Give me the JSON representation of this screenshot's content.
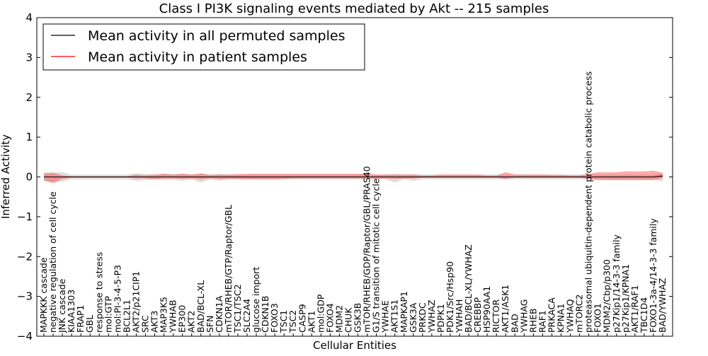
{
  "chart_data": {
    "type": "line",
    "title": "Class I PI3K signaling events mediated by Akt -- 215 samples",
    "xlabel": "Cellular Entities",
    "ylabel": "Inferred Activity",
    "ylim": [
      -4,
      4
    ],
    "yticks": [
      4,
      3,
      2,
      1,
      0,
      -1,
      -2,
      -3,
      -4
    ],
    "grid": false,
    "legend_position": "top-left",
    "legend": [
      {
        "label": "Mean activity in all permuted samples",
        "color": "#000000"
      },
      {
        "label": "Mean activity in patient samples",
        "color": "#ff0000"
      }
    ],
    "categories": [
      "MAPKKK cascade",
      "negative regulation of cell cycle",
      "JNK cascade",
      "KIAA1303",
      "FRAP1",
      "GBL",
      "response to stress",
      "mol:GTP",
      "mol:PI-3-4-5-P3",
      "BCL2L1",
      "AKT2/p21CIP1",
      "SRC",
      "AKT3",
      "MAP3K5",
      "YWHAB",
      "EP300",
      "AKT2",
      "BAD/BCL-XL",
      "SFN",
      "CDKN1A",
      "mTOR/RHEB/GTP/Raptor/GBL",
      "TSC1/TSC2",
      "SLC2A4",
      "glucose import",
      "CDKN1B",
      "FOXO3",
      "TSC1",
      "TSC2",
      "CASP9",
      "AKT1",
      "mol:GDP",
      "FOXO4",
      "MDM2",
      "CHUK",
      "GSK3B",
      "mTOR/RHEB/GDP/Raptor/GBL/PRAS40",
      "G1/S transition of mitotic cell cycle",
      "YWHAE",
      "AKT1S1",
      "MAPKAP1",
      "GSK3A",
      "PRKDC",
      "YWHAZ",
      "PDPK1",
      "PDK1/Src/Hsp90",
      "YWHAH",
      "BAD/BCL-XL/YWHAZ",
      "CREBBP",
      "HSP90AA1",
      "RICTOR",
      "AKT1/ASK1",
      "BAD",
      "YWHAG",
      "RHEB",
      "RAF1",
      "PRKACA",
      "KPNA1",
      "YWHAQ",
      "mTORC2",
      "proteasomal ubiquitin-dependent protein catabolic process",
      "FOXO1",
      "MDM2/Cbp/p300",
      "p27Kip1/14-3-3 family",
      "p27Kip1/KPNA1",
      "AKT1/RAF1",
      "TBC1D4",
      "FOXO1-3a-4/14-3-3 family",
      "BAD/YWHAZ"
    ],
    "series": [
      {
        "name": "Mean activity in all permuted samples",
        "color": "#000000",
        "values": [
          0,
          0,
          0,
          0,
          0,
          0,
          0,
          0,
          0,
          0,
          0,
          0,
          0,
          0,
          0,
          0,
          0,
          0,
          0,
          0,
          0,
          0,
          0,
          0,
          0,
          0,
          0,
          0,
          0,
          0,
          0,
          0,
          0,
          0,
          0,
          0,
          0,
          0,
          0,
          0,
          0,
          0,
          0,
          0,
          0,
          0,
          0,
          0,
          0,
          0,
          0,
          0,
          0,
          0,
          0,
          0,
          0,
          0,
          0,
          0,
          0,
          0,
          0,
          0,
          0,
          0,
          0,
          0.02
        ],
        "band_upper": [
          0.12,
          0.12,
          0.12,
          0.06,
          0.06,
          0.06,
          0.06,
          0.06,
          0.06,
          0.06,
          0.09,
          0.08,
          0.06,
          0.08,
          0.07,
          0.08,
          0.06,
          0.1,
          0.06,
          0.08,
          0.06,
          0.06,
          0.06,
          0.06,
          0.06,
          0.06,
          0.06,
          0.06,
          0.06,
          0.06,
          0.06,
          0.06,
          0.06,
          0.06,
          0.06,
          0.06,
          0.06,
          0.06,
          0.08,
          0.06,
          0.07,
          0.06,
          0.06,
          0.06,
          0.06,
          0.06,
          0.06,
          0.06,
          0.06,
          0.06,
          0.06,
          0.06,
          0.06,
          0.06,
          0.06,
          0.06,
          0.06,
          0.06,
          0.06,
          0.06,
          0.06,
          0.06,
          0.06,
          0.06,
          0.06,
          0.06,
          0.06,
          0.1
        ],
        "band_lower": [
          -0.12,
          -0.12,
          -0.12,
          -0.06,
          -0.06,
          -0.06,
          -0.06,
          -0.06,
          -0.06,
          -0.06,
          -0.1,
          -0.08,
          -0.06,
          -0.08,
          -0.07,
          -0.1,
          -0.06,
          -0.14,
          -0.06,
          -0.1,
          -0.06,
          -0.06,
          -0.06,
          -0.06,
          -0.06,
          -0.06,
          -0.06,
          -0.06,
          -0.06,
          -0.06,
          -0.06,
          -0.06,
          -0.06,
          -0.06,
          -0.06,
          -0.06,
          -0.06,
          -0.06,
          -0.14,
          -0.06,
          -0.1,
          -0.06,
          -0.06,
          -0.06,
          -0.06,
          -0.06,
          -0.06,
          -0.06,
          -0.06,
          -0.06,
          -0.06,
          -0.06,
          -0.06,
          -0.06,
          -0.06,
          -0.06,
          -0.06,
          -0.06,
          -0.06,
          -0.06,
          -0.06,
          -0.06,
          -0.06,
          -0.06,
          -0.06,
          -0.06,
          -0.06,
          -0.12
        ]
      },
      {
        "name": "Mean activity in patient samples",
        "color": "#ff0000",
        "values": [
          0,
          0,
          0,
          0,
          0,
          0,
          0,
          0,
          0,
          0,
          0,
          0,
          0,
          0,
          0,
          0,
          0,
          0,
          0,
          0,
          0,
          0,
          0,
          0,
          0,
          0,
          0,
          0,
          0,
          0,
          0,
          0,
          0,
          0,
          0,
          0,
          0,
          0,
          0,
          0,
          0,
          0,
          0,
          0,
          0,
          0,
          0,
          0,
          0,
          0,
          0,
          0,
          0,
          0,
          0,
          0,
          0,
          0,
          0,
          0,
          0,
          0,
          0,
          0,
          0,
          0,
          0,
          0.03
        ],
        "band_upper": [
          0.08,
          0.1,
          0.04,
          0.02,
          0.02,
          0.02,
          0.02,
          0.02,
          0.02,
          0.02,
          0.06,
          0.04,
          0.06,
          0.08,
          0.06,
          0.08,
          0.06,
          0.08,
          0.05,
          0.06,
          0.06,
          0.07,
          0.08,
          0.08,
          0.08,
          0.08,
          0.08,
          0.08,
          0.08,
          0.08,
          0.08,
          0.08,
          0.08,
          0.08,
          0.08,
          0.08,
          0.06,
          0.06,
          0.06,
          0.06,
          0.06,
          0.04,
          0.04,
          0.06,
          0.06,
          0.06,
          0.06,
          0.06,
          0.04,
          0.04,
          0.12,
          0.06,
          0.06,
          0.06,
          0.06,
          0.05,
          0.05,
          0.04,
          0.04,
          0.08,
          0.12,
          0.12,
          0.12,
          0.14,
          0.14,
          0.14,
          0.16,
          0.1
        ],
        "band_lower": [
          -0.08,
          -0.16,
          -0.05,
          -0.02,
          -0.02,
          -0.02,
          -0.02,
          -0.02,
          -0.02,
          -0.02,
          -0.04,
          -0.04,
          -0.06,
          -0.04,
          -0.04,
          -0.05,
          -0.04,
          -0.06,
          -0.04,
          -0.05,
          -0.05,
          -0.05,
          -0.06,
          -0.06,
          -0.06,
          -0.06,
          -0.05,
          -0.04,
          -0.04,
          -0.04,
          -0.04,
          -0.04,
          -0.04,
          -0.04,
          -0.04,
          -0.04,
          -0.04,
          -0.04,
          -0.05,
          -0.04,
          -0.04,
          -0.02,
          -0.02,
          -0.02,
          -0.02,
          -0.02,
          -0.02,
          -0.02,
          -0.02,
          -0.02,
          -0.05,
          -0.02,
          -0.02,
          -0.02,
          -0.02,
          -0.02,
          -0.02,
          -0.02,
          -0.02,
          -0.05,
          -0.08,
          -0.08,
          -0.08,
          -0.08,
          -0.08,
          -0.08,
          -0.08,
          -0.04
        ]
      }
    ]
  }
}
